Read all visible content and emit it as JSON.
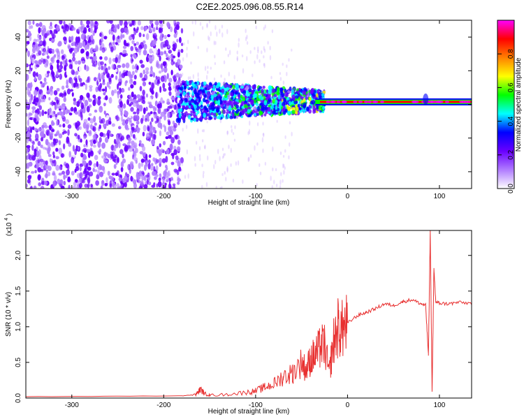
{
  "title": "C2E2.2025.096.08.55.R14",
  "chart_data": [
    {
      "type": "heatmap",
      "xlabel": "Height of straight line (km)",
      "ylabel": "Frequency (Hz)",
      "xlim": [
        -350,
        135
      ],
      "ylim": [
        -50,
        50
      ],
      "xticks": [
        -300,
        -200,
        -100,
        0,
        100
      ],
      "yticks": [
        -40,
        -20,
        0,
        20,
        40
      ],
      "regions": [
        {
          "x": [
            -350,
            -180
          ],
          "description_level": "scattered",
          "amplitude": 0.1
        },
        {
          "x": [
            -180,
            -30
          ],
          "amplitude": 0.35,
          "freq_spread": 12
        },
        {
          "x": [
            -30,
            135
          ],
          "amplitude": 0.9,
          "freq_center": 1.5
        }
      ],
      "colorbar": {
        "label": "Normalized spectral amplitude",
        "range": [
          0,
          1
        ],
        "ticks": [
          "0.0",
          "0.2",
          "0.4",
          "0.6",
          "0.8"
        ],
        "colors": [
          "#ffffff",
          "#b07cff",
          "#6a00ff",
          "#0000ff",
          "#00ffff",
          "#00ff00",
          "#ffff00",
          "#ff8000",
          "#ff0000",
          "#ff00ff"
        ]
      }
    },
    {
      "type": "line",
      "xlabel": "Height of straight line (km)",
      "ylabel": "SNR (10 * v/v)",
      "yscale_label": "(x10",
      "yscale_exp": "4",
      "xlim": [
        -350,
        135
      ],
      "ylim": [
        0,
        2.35
      ],
      "xticks": [
        -300,
        -200,
        -100,
        0,
        100
      ],
      "yticks": [
        "0.0",
        "0.5",
        "1.0",
        "1.5",
        "2.0"
      ],
      "series": [
        {
          "color": "#e83030",
          "x": [
            -350,
            -180,
            -165,
            -160,
            -155,
            -150,
            -130,
            -110,
            -100,
            -90,
            -80,
            -70,
            -60,
            -50,
            -45,
            -40,
            -35,
            -30,
            -25,
            -20,
            -15,
            -10,
            -5,
            0,
            10,
            20,
            30,
            40,
            50,
            60,
            70,
            80,
            85,
            88,
            90,
            92,
            94,
            96,
            100,
            110,
            120,
            135
          ],
          "y": [
            0.02,
            0.03,
            0.05,
            0.12,
            0.06,
            0.04,
            0.05,
            0.08,
            0.1,
            0.15,
            0.2,
            0.3,
            0.35,
            0.5,
            0.4,
            0.55,
            0.6,
            0.7,
            0.75,
            0.35,
            0.8,
            1.0,
            0.95,
            1.05,
            1.15,
            1.2,
            1.25,
            1.32,
            1.3,
            1.35,
            1.38,
            1.32,
            1.3,
            0.6,
            2.35,
            0.1,
            1.8,
            1.35,
            1.33,
            1.32,
            1.34,
            1.33
          ]
        }
      ]
    }
  ]
}
